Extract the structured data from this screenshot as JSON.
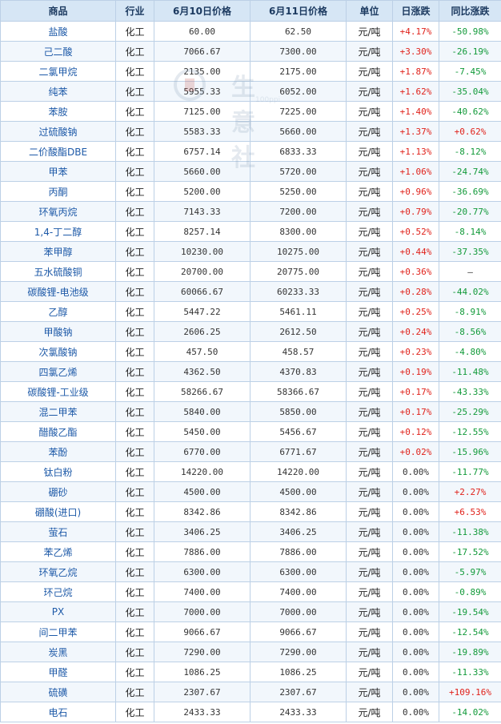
{
  "header": [
    "商品",
    "行业",
    "6月10日价格",
    "6月11日价格",
    "单位",
    "日涨跌",
    "同比涨跌"
  ],
  "watermark": {
    "text": "生意社",
    "url": "100ppi"
  },
  "rows": [
    {
      "name": "盐酸",
      "industry": "化工",
      "p1": "60.00",
      "p2": "62.50",
      "unit": "元/吨",
      "day": "+4.17%",
      "yoy": "-50.98%"
    },
    {
      "name": "己二酸",
      "industry": "化工",
      "p1": "7066.67",
      "p2": "7300.00",
      "unit": "元/吨",
      "day": "+3.30%",
      "yoy": "-26.19%"
    },
    {
      "name": "二氯甲烷",
      "industry": "化工",
      "p1": "2135.00",
      "p2": "2175.00",
      "unit": "元/吨",
      "day": "+1.87%",
      "yoy": "-7.45%"
    },
    {
      "name": "纯苯",
      "industry": "化工",
      "p1": "5955.33",
      "p2": "6052.00",
      "unit": "元/吨",
      "day": "+1.62%",
      "yoy": "-35.04%"
    },
    {
      "name": "苯胺",
      "industry": "化工",
      "p1": "7125.00",
      "p2": "7225.00",
      "unit": "元/吨",
      "day": "+1.40%",
      "yoy": "-40.62%"
    },
    {
      "name": "过硫酸钠",
      "industry": "化工",
      "p1": "5583.33",
      "p2": "5660.00",
      "unit": "元/吨",
      "day": "+1.37%",
      "yoy": "+0.62%"
    },
    {
      "name": "二价酸酯DBE",
      "industry": "化工",
      "p1": "6757.14",
      "p2": "6833.33",
      "unit": "元/吨",
      "day": "+1.13%",
      "yoy": "-8.12%"
    },
    {
      "name": "甲苯",
      "industry": "化工",
      "p1": "5660.00",
      "p2": "5720.00",
      "unit": "元/吨",
      "day": "+1.06%",
      "yoy": "-24.74%"
    },
    {
      "name": "丙酮",
      "industry": "化工",
      "p1": "5200.00",
      "p2": "5250.00",
      "unit": "元/吨",
      "day": "+0.96%",
      "yoy": "-36.69%"
    },
    {
      "name": "环氧丙烷",
      "industry": "化工",
      "p1": "7143.33",
      "p2": "7200.00",
      "unit": "元/吨",
      "day": "+0.79%",
      "yoy": "-20.77%"
    },
    {
      "name": "1,4-丁二醇",
      "industry": "化工",
      "p1": "8257.14",
      "p2": "8300.00",
      "unit": "元/吨",
      "day": "+0.52%",
      "yoy": "-8.14%"
    },
    {
      "name": "苯甲醇",
      "industry": "化工",
      "p1": "10230.00",
      "p2": "10275.00",
      "unit": "元/吨",
      "day": "+0.44%",
      "yoy": "-37.35%"
    },
    {
      "name": "五水硫酸铜",
      "industry": "化工",
      "p1": "20700.00",
      "p2": "20775.00",
      "unit": "元/吨",
      "day": "+0.36%",
      "yoy": "—"
    },
    {
      "name": "碳酸锂-电池级",
      "industry": "化工",
      "p1": "60066.67",
      "p2": "60233.33",
      "unit": "元/吨",
      "day": "+0.28%",
      "yoy": "-44.02%"
    },
    {
      "name": "乙醇",
      "industry": "化工",
      "p1": "5447.22",
      "p2": "5461.11",
      "unit": "元/吨",
      "day": "+0.25%",
      "yoy": "-8.91%"
    },
    {
      "name": "甲酸钠",
      "industry": "化工",
      "p1": "2606.25",
      "p2": "2612.50",
      "unit": "元/吨",
      "day": "+0.24%",
      "yoy": "-8.56%"
    },
    {
      "name": "次氯酸钠",
      "industry": "化工",
      "p1": "457.50",
      "p2": "458.57",
      "unit": "元/吨",
      "day": "+0.23%",
      "yoy": "-4.80%"
    },
    {
      "name": "四氯乙烯",
      "industry": "化工",
      "p1": "4362.50",
      "p2": "4370.83",
      "unit": "元/吨",
      "day": "+0.19%",
      "yoy": "-11.48%"
    },
    {
      "name": "碳酸锂-工业级",
      "industry": "化工",
      "p1": "58266.67",
      "p2": "58366.67",
      "unit": "元/吨",
      "day": "+0.17%",
      "yoy": "-43.33%"
    },
    {
      "name": "混二甲苯",
      "industry": "化工",
      "p1": "5840.00",
      "p2": "5850.00",
      "unit": "元/吨",
      "day": "+0.17%",
      "yoy": "-25.29%"
    },
    {
      "name": "醋酸乙酯",
      "industry": "化工",
      "p1": "5450.00",
      "p2": "5456.67",
      "unit": "元/吨",
      "day": "+0.12%",
      "yoy": "-12.55%"
    },
    {
      "name": "苯酚",
      "industry": "化工",
      "p1": "6770.00",
      "p2": "6771.67",
      "unit": "元/吨",
      "day": "+0.02%",
      "yoy": "-15.96%"
    },
    {
      "name": "钛白粉",
      "industry": "化工",
      "p1": "14220.00",
      "p2": "14220.00",
      "unit": "元/吨",
      "day": "0.00%",
      "yoy": "-11.77%"
    },
    {
      "name": "硼砂",
      "industry": "化工",
      "p1": "4500.00",
      "p2": "4500.00",
      "unit": "元/吨",
      "day": "0.00%",
      "yoy": "+2.27%"
    },
    {
      "name": "硼酸(进口)",
      "industry": "化工",
      "p1": "8342.86",
      "p2": "8342.86",
      "unit": "元/吨",
      "day": "0.00%",
      "yoy": "+6.53%"
    },
    {
      "name": "萤石",
      "industry": "化工",
      "p1": "3406.25",
      "p2": "3406.25",
      "unit": "元/吨",
      "day": "0.00%",
      "yoy": "-11.38%"
    },
    {
      "name": "苯乙烯",
      "industry": "化工",
      "p1": "7886.00",
      "p2": "7886.00",
      "unit": "元/吨",
      "day": "0.00%",
      "yoy": "-17.52%"
    },
    {
      "name": "环氧乙烷",
      "industry": "化工",
      "p1": "6300.00",
      "p2": "6300.00",
      "unit": "元/吨",
      "day": "0.00%",
      "yoy": "-5.97%"
    },
    {
      "name": "环己烷",
      "industry": "化工",
      "p1": "7400.00",
      "p2": "7400.00",
      "unit": "元/吨",
      "day": "0.00%",
      "yoy": "-0.89%"
    },
    {
      "name": "PX",
      "industry": "化工",
      "p1": "7000.00",
      "p2": "7000.00",
      "unit": "元/吨",
      "day": "0.00%",
      "yoy": "-19.54%"
    },
    {
      "name": "间二甲苯",
      "industry": "化工",
      "p1": "9066.67",
      "p2": "9066.67",
      "unit": "元/吨",
      "day": "0.00%",
      "yoy": "-12.54%"
    },
    {
      "name": "炭黑",
      "industry": "化工",
      "p1": "7290.00",
      "p2": "7290.00",
      "unit": "元/吨",
      "day": "0.00%",
      "yoy": "-19.89%"
    },
    {
      "name": "甲醛",
      "industry": "化工",
      "p1": "1086.25",
      "p2": "1086.25",
      "unit": "元/吨",
      "day": "0.00%",
      "yoy": "-11.33%"
    },
    {
      "name": "硫磺",
      "industry": "化工",
      "p1": "2307.67",
      "p2": "2307.67",
      "unit": "元/吨",
      "day": "0.00%",
      "yoy": "+109.16%"
    },
    {
      "name": "电石",
      "industry": "化工",
      "p1": "2433.33",
      "p2": "2433.33",
      "unit": "元/吨",
      "day": "0.00%",
      "yoy": "-14.02%"
    }
  ]
}
